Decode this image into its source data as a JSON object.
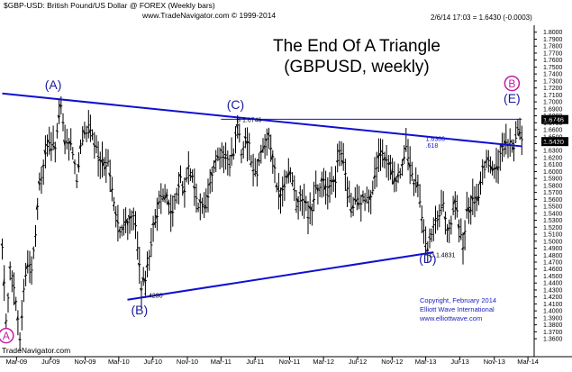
{
  "header": {
    "symbol_line": "$GBP-USD:  British Pound/US Dollar @ FOREX  (Weekly bars)",
    "source_line": "www.TradeNavigator.com © 1999-2014",
    "quote_line": "2/6/14 17:03 = 1.6430 (-0.0003)"
  },
  "title": {
    "line1": "The End Of A Triangle",
    "line2": "(GBPUSD, weekly)"
  },
  "copyright": {
    "line1": "Copyright, February 2014",
    "line2": "Elliott Wave International",
    "line3": "www.elliottwave.com"
  },
  "branding": {
    "trade_navigator": "TradeNavigator.com"
  },
  "colors": {
    "bars": "#000000",
    "trendline": "#1010d0",
    "wave_label_blue": "#1a1aa0",
    "wave_label_magenta": "#c020a0",
    "price_box": "#000000",
    "grid": "#d8d8d8"
  },
  "chart_data": {
    "type": "line",
    "title": "The End Of A Triangle (GBPUSD, weekly)",
    "xlabel": "",
    "ylabel": "",
    "x_ticks": [
      "Mar-09",
      "Jul-09",
      "Nov-09",
      "Mar-10",
      "Jul-10",
      "Nov-10",
      "Mar-11",
      "Jul-11",
      "Nov-11",
      "Mar-12",
      "Jul-12",
      "Nov-12",
      "Mar-13",
      "Jul-13",
      "Nov-13",
      "Mar-14"
    ],
    "y_ticks": [
      "1.8000",
      "1.7900",
      "1.7800",
      "1.7700",
      "1.7600",
      "1.7500",
      "1.7400",
      "1.7300",
      "1.7200",
      "1.7100",
      "1.7000",
      "1.6900",
      "1.6800",
      "1.6700",
      "1.6600",
      "1.6500",
      "1.6400",
      "1.6300",
      "1.6200",
      "1.6100",
      "1.6000",
      "1.5900",
      "1.5800",
      "1.5700",
      "1.5600",
      "1.5500",
      "1.5400",
      "1.5300",
      "1.5200",
      "1.5100",
      "1.5000",
      "1.4900",
      "1.4800",
      "1.4700",
      "1.4600",
      "1.4500",
      "1.4400",
      "1.4300",
      "1.4200",
      "1.4100",
      "1.4000",
      "1.3900",
      "1.3800",
      "1.3700",
      "1.3600"
    ],
    "ylim": [
      1.342,
      1.81
    ],
    "grid": false,
    "series": [
      {
        "values": [
          [
            "2009-01-09",
            1.49
          ],
          [
            "2009-01-23",
            1.39
          ],
          [
            "2009-02-06",
            1.46
          ],
          [
            "2009-02-20",
            1.43
          ],
          [
            "2009-03-06",
            1.39
          ],
          [
            "2009-03-13",
            1.358
          ],
          [
            "2009-03-27",
            1.43
          ],
          [
            "2009-04-10",
            1.47
          ],
          [
            "2009-04-24",
            1.46
          ],
          [
            "2009-05-08",
            1.51
          ],
          [
            "2009-05-22",
            1.58
          ],
          [
            "2009-06-05",
            1.61
          ],
          [
            "2009-06-19",
            1.64
          ],
          [
            "2009-07-03",
            1.63
          ],
          [
            "2009-07-17",
            1.64
          ],
          [
            "2009-08-07",
            1.69
          ],
          [
            "2009-08-21",
            1.64
          ],
          [
            "2009-09-04",
            1.64
          ],
          [
            "2009-09-18",
            1.63
          ],
          [
            "2009-10-02",
            1.59
          ],
          [
            "2009-10-16",
            1.63
          ],
          [
            "2009-10-30",
            1.66
          ],
          [
            "2009-11-13",
            1.66
          ],
          [
            "2009-11-27",
            1.65
          ],
          [
            "2009-12-11",
            1.63
          ],
          [
            "2009-12-25",
            1.61
          ],
          [
            "2010-01-08",
            1.61
          ],
          [
            "2010-01-22",
            1.62
          ],
          [
            "2010-02-05",
            1.57
          ],
          [
            "2010-02-19",
            1.54
          ],
          [
            "2010-03-05",
            1.51
          ],
          [
            "2010-03-19",
            1.52
          ],
          [
            "2010-04-02",
            1.53
          ],
          [
            "2010-04-16",
            1.54
          ],
          [
            "2010-04-30",
            1.52
          ],
          [
            "2010-05-07",
            1.49
          ],
          [
            "2010-05-14",
            1.46
          ],
          [
            "2010-05-21",
            1.429
          ],
          [
            "2010-06-04",
            1.45
          ],
          [
            "2010-06-18",
            1.48
          ],
          [
            "2010-07-02",
            1.52
          ],
          [
            "2010-07-16",
            1.54
          ],
          [
            "2010-07-30",
            1.57
          ],
          [
            "2010-08-13",
            1.57
          ],
          [
            "2010-08-27",
            1.55
          ],
          [
            "2010-09-10",
            1.54
          ],
          [
            "2010-09-24",
            1.57
          ],
          [
            "2010-10-08",
            1.59
          ],
          [
            "2010-10-22",
            1.57
          ],
          [
            "2010-11-05",
            1.61
          ],
          [
            "2010-11-19",
            1.59
          ],
          [
            "2010-12-03",
            1.56
          ],
          [
            "2010-12-17",
            1.55
          ],
          [
            "2011-01-07",
            1.55
          ],
          [
            "2011-01-21",
            1.59
          ],
          [
            "2011-02-04",
            1.61
          ],
          [
            "2011-02-18",
            1.62
          ],
          [
            "2011-03-04",
            1.63
          ],
          [
            "2011-03-18",
            1.62
          ],
          [
            "2011-04-01",
            1.61
          ],
          [
            "2011-04-15",
            1.63
          ],
          [
            "2011-04-29",
            1.67
          ],
          [
            "2011-05-13",
            1.63
          ],
          [
            "2011-05-27",
            1.65
          ],
          [
            "2011-06-10",
            1.64
          ],
          [
            "2011-06-24",
            1.6
          ],
          [
            "2011-07-08",
            1.6
          ],
          [
            "2011-07-22",
            1.63
          ],
          [
            "2011-08-05",
            1.64
          ],
          [
            "2011-08-19",
            1.65
          ],
          [
            "2011-09-02",
            1.62
          ],
          [
            "2011-09-16",
            1.58
          ],
          [
            "2011-09-30",
            1.56
          ],
          [
            "2011-10-14",
            1.58
          ],
          [
            "2011-10-28",
            1.6
          ],
          [
            "2011-11-11",
            1.59
          ],
          [
            "2011-11-25",
            1.55
          ],
          [
            "2011-12-09",
            1.57
          ],
          [
            "2011-12-23",
            1.56
          ],
          [
            "2012-01-06",
            1.54
          ],
          [
            "2012-01-20",
            1.55
          ],
          [
            "2012-02-03",
            1.58
          ],
          [
            "2012-02-17",
            1.58
          ],
          [
            "2012-03-02",
            1.59
          ],
          [
            "2012-03-16",
            1.57
          ],
          [
            "2012-03-30",
            1.59
          ],
          [
            "2012-04-13",
            1.59
          ],
          [
            "2012-04-27",
            1.63
          ],
          [
            "2012-05-11",
            1.61
          ],
          [
            "2012-05-25",
            1.58
          ],
          [
            "2012-06-08",
            1.54
          ],
          [
            "2012-06-22",
            1.56
          ],
          [
            "2012-07-06",
            1.55
          ],
          [
            "2012-07-20",
            1.56
          ],
          [
            "2012-08-03",
            1.56
          ],
          [
            "2012-08-17",
            1.57
          ],
          [
            "2012-08-31",
            1.59
          ],
          [
            "2012-09-14",
            1.62
          ],
          [
            "2012-09-28",
            1.62
          ],
          [
            "2012-10-12",
            1.61
          ],
          [
            "2012-10-26",
            1.61
          ],
          [
            "2012-11-09",
            1.59
          ],
          [
            "2012-11-23",
            1.59
          ],
          [
            "2012-12-07",
            1.61
          ],
          [
            "2012-12-21",
            1.63
          ],
          [
            "2013-01-04",
            1.61
          ],
          [
            "2013-01-18",
            1.58
          ],
          [
            "2013-02-01",
            1.58
          ],
          [
            "2013-02-15",
            1.54
          ],
          [
            "2013-03-01",
            1.5
          ],
          [
            "2013-03-08",
            1.4831
          ],
          [
            "2013-03-22",
            1.51
          ],
          [
            "2013-04-05",
            1.53
          ],
          [
            "2013-04-19",
            1.53
          ],
          [
            "2013-05-03",
            1.56
          ],
          [
            "2013-05-17",
            1.52
          ],
          [
            "2013-05-31",
            1.52
          ],
          [
            "2013-06-14",
            1.56
          ],
          [
            "2013-06-28",
            1.52
          ],
          [
            "2013-07-12",
            1.49
          ],
          [
            "2013-07-26",
            1.54
          ],
          [
            "2013-08-09",
            1.55
          ],
          [
            "2013-08-23",
            1.56
          ],
          [
            "2013-09-06",
            1.56
          ],
          [
            "2013-09-20",
            1.6
          ],
          [
            "2013-10-04",
            1.61
          ],
          [
            "2013-10-18",
            1.61
          ],
          [
            "2013-11-01",
            1.6
          ],
          [
            "2013-11-15",
            1.61
          ],
          [
            "2013-11-29",
            1.63
          ],
          [
            "2013-12-13",
            1.64
          ],
          [
            "2013-12-27",
            1.64
          ],
          [
            "2014-01-10",
            1.64
          ],
          [
            "2014-01-24",
            1.66
          ],
          [
            "2014-02-07",
            1.643
          ]
        ]
      }
    ],
    "trendlines": [
      {
        "from": [
          "2009-01-09",
          1.712
        ],
        "to": [
          "2014-02-07",
          1.6362
        ]
      },
      {
        "from": [
          "2010-04-01",
          1.416
        ],
        "to": [
          "2013-03-29",
          1.484
        ]
      },
      {
        "from": [
          "2011-03-01",
          1.675
        ],
        "to": [
          "2014-02-07",
          1.675
        ]
      }
    ],
    "wave_labels": [
      {
        "label": "(A)",
        "x": "2009-07-10",
        "y": 1.718,
        "color": "blue"
      },
      {
        "label": "(B)",
        "x": "2010-05-14",
        "y": 1.395,
        "color": "blue"
      },
      {
        "label": "(C)",
        "x": "2011-04-22",
        "y": 1.69,
        "color": "blue"
      },
      {
        "label": "(D)",
        "x": "2013-03-08",
        "y": 1.469,
        "color": "blue"
      },
      {
        "label": "(E)",
        "x": "2014-01-03",
        "y": 1.699,
        "color": "blue"
      },
      {
        "label": "A",
        "x": "2009-01-23",
        "y": 1.358,
        "color": "magenta"
      },
      {
        "label": "B",
        "x": "2014-01-03",
        "y": 1.72,
        "color": "magenta"
      }
    ],
    "price_annotations": [
      {
        "text": "1.4230",
        "x": "2010-05-28",
        "y": 1.419
      },
      {
        "text": "B 1.6746",
        "x": "2011-04-25",
        "y": 1.671
      },
      {
        "text": "C 1.4831",
        "x": "2013-03-15",
        "y": 1.477
      },
      {
        "text": "1.6386",
        "x": "2013-03-01",
        "y": 1.644
      },
      {
        "text": ".618",
        "x": "2013-03-01",
        "y": 1.634
      }
    ],
    "price_boxes": [
      {
        "text": "1.6746",
        "y": 1.6746
      },
      {
        "text": "1.6430",
        "y": 1.643
      }
    ]
  }
}
